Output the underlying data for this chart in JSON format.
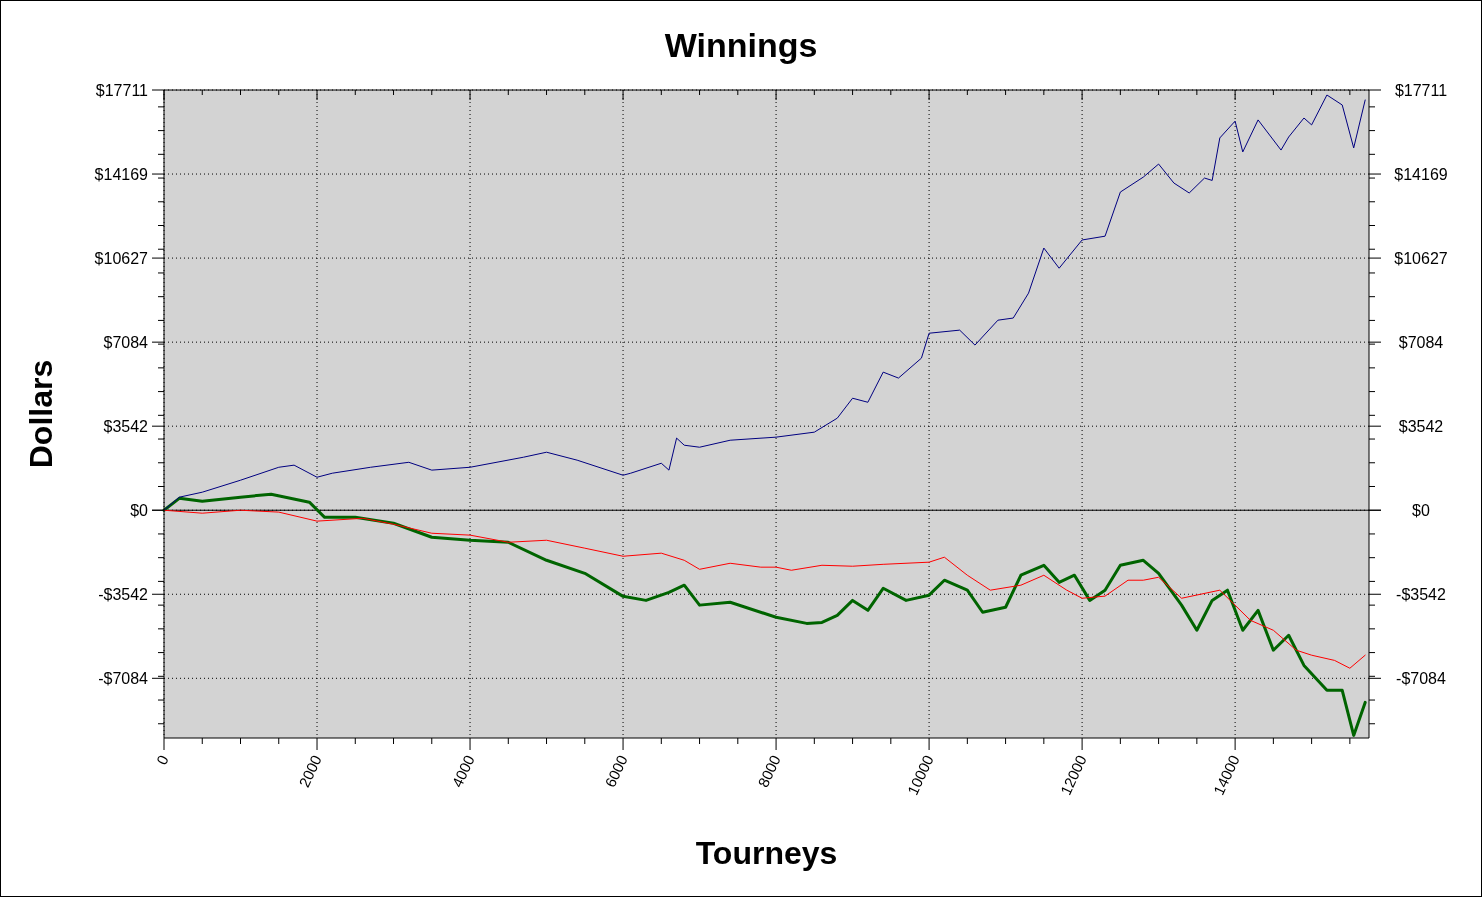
{
  "chart_data": {
    "type": "line",
    "title": "Winnings",
    "xlabel": "Tourneys",
    "ylabel": "Dollars",
    "xlim": [
      0,
      15750
    ],
    "xticks": [
      0,
      {
        "value": 500,
        "label": null
      },
      {
        "value": 1000,
        "label": null
      },
      {
        "value": 1500,
        "label": null
      },
      2000,
      {
        "value": 2500,
        "label": null
      },
      {
        "value": 3000,
        "label": null
      },
      {
        "value": 3500,
        "label": null
      },
      4000,
      {
        "value": 4500,
        "label": null
      },
      {
        "value": 5000,
        "label": null
      },
      {
        "value": 5500,
        "label": null
      },
      6000,
      {
        "value": 6500,
        "label": null
      },
      {
        "value": 7000,
        "label": null
      },
      {
        "value": 7500,
        "label": null
      },
      8000,
      {
        "value": 8500,
        "label": null
      },
      {
        "value": 9000,
        "label": null
      },
      {
        "value": 9500,
        "label": null
      },
      10000,
      {
        "value": 10500,
        "label": null
      },
      {
        "value": 11000,
        "label": null
      },
      {
        "value": 11500,
        "label": null
      },
      12000,
      {
        "value": 12500,
        "label": null
      },
      {
        "value": 13000,
        "label": null
      },
      {
        "value": 13500,
        "label": null
      },
      14000,
      {
        "value": 14500,
        "label": null
      },
      {
        "value": 15000,
        "label": null
      },
      {
        "value": 15500,
        "label": null
      }
    ],
    "ylim": [
      -9600,
      17711
    ],
    "yticks": [
      {
        "value": -7084,
        "label": "-$7084"
      },
      {
        "value": -3542,
        "label": "-$3542"
      },
      {
        "value": 0,
        "label": "$0"
      },
      {
        "value": 3542,
        "label": "$3542"
      },
      {
        "value": 7084,
        "label": "$7084"
      },
      {
        "value": 10627,
        "label": "$10627"
      },
      {
        "value": 14169,
        "label": "$14169"
      },
      {
        "value": 17711,
        "label": "$17711"
      },
      {
        "value": -9000,
        "label": null
      },
      {
        "value": -8000,
        "label": null
      },
      {
        "value": -7000,
        "label": null
      },
      {
        "value": -6000,
        "label": null
      },
      {
        "value": -5000,
        "label": null
      },
      {
        "value": -4000,
        "label": null
      },
      {
        "value": -3000,
        "label": null
      },
      {
        "value": -2000,
        "label": null
      },
      {
        "value": -1000,
        "label": null
      },
      {
        "value": 1000,
        "label": null
      },
      {
        "value": 2000,
        "label": null
      },
      {
        "value": 3000,
        "label": null
      },
      {
        "value": 4000,
        "label": null
      },
      {
        "value": 5000,
        "label": null
      },
      {
        "value": 6000,
        "label": null
      },
      {
        "value": 7000,
        "label": null
      },
      {
        "value": 8000,
        "label": null
      },
      {
        "value": 9000,
        "label": null
      },
      {
        "value": 10000,
        "label": null
      },
      {
        "value": 11000,
        "label": null
      },
      {
        "value": 12000,
        "label": null
      },
      {
        "value": 13000,
        "label": null
      },
      {
        "value": 14000,
        "label": null
      },
      {
        "value": 15000,
        "label": null
      },
      {
        "value": 16000,
        "label": null
      },
      {
        "value": 17000,
        "label": null
      }
    ],
    "y2lim": [
      -9600,
      17711
    ],
    "y2ticks": [
      {
        "value": -7084,
        "label": "-$7084"
      },
      {
        "value": -3542,
        "label": "-$3542"
      },
      {
        "value": 0,
        "label": "$0"
      },
      {
        "value": 3542,
        "label": "$3542"
      },
      {
        "value": 7084,
        "label": "$7084"
      },
      {
        "value": 10627,
        "label": "$10627"
      },
      {
        "value": 14169,
        "label": "$14169"
      },
      {
        "value": 17711,
        "label": "$17711"
      },
      {
        "value": -9000,
        "label": null
      },
      {
        "value": -8000,
        "label": null
      },
      {
        "value": -7000,
        "label": null
      },
      {
        "value": -6000,
        "label": null
      },
      {
        "value": -5000,
        "label": null
      },
      {
        "value": -4000,
        "label": null
      },
      {
        "value": -3000,
        "label": null
      },
      {
        "value": -2000,
        "label": null
      },
      {
        "value": -1000,
        "label": null
      },
      {
        "value": 1000,
        "label": null
      },
      {
        "value": 2000,
        "label": null
      },
      {
        "value": 3000,
        "label": null
      },
      {
        "value": 4000,
        "label": null
      },
      {
        "value": 5000,
        "label": null
      },
      {
        "value": 6000,
        "label": null
      },
      {
        "value": 7000,
        "label": null
      },
      {
        "value": 8000,
        "label": null
      },
      {
        "value": 9000,
        "label": null
      },
      {
        "value": 10000,
        "label": null
      },
      {
        "value": 11000,
        "label": null
      },
      {
        "value": 12000,
        "label": null
      },
      {
        "value": 13000,
        "label": null
      },
      {
        "value": 14000,
        "label": null
      },
      {
        "value": 15000,
        "label": null
      },
      {
        "value": 16000,
        "label": null
      },
      {
        "value": 17000,
        "label": null
      }
    ],
    "grid": true,
    "ref_lines": [
      {
        "axis": "y",
        "value": 0,
        "label": null,
        "color": "#000000"
      }
    ],
    "series": [
      {
        "color": "#000080",
        "x": [
          0,
          200,
          500,
          1000,
          1500,
          1700,
          2000,
          2200,
          2700,
          3200,
          3500,
          4000,
          4700,
          5000,
          5400,
          6000,
          6100,
          6500,
          6600,
          6700,
          6800,
          7000,
          7400,
          8000,
          8500,
          8800,
          9000,
          9200,
          9400,
          9600,
          9900,
          10000,
          10400,
          10600,
          10900,
          11100,
          11300,
          11500,
          11700,
          12000,
          12300,
          12500,
          12800,
          13000,
          13200,
          13400,
          13600,
          13700,
          13800,
          14000,
          14100,
          14300,
          14600,
          14700,
          14900,
          15000,
          15200,
          15400,
          15550,
          15700
        ],
        "values": [
          0,
          550,
          760,
          1265,
          1810,
          1900,
          1390,
          1560,
          1810,
          2020,
          1690,
          1810,
          2235,
          2445,
          2110,
          1475,
          1560,
          1980,
          1690,
          3040,
          2740,
          2655,
          2950,
          3080,
          3290,
          3880,
          4720,
          4550,
          5820,
          5570,
          6410,
          7460,
          7590,
          6960,
          8010,
          8100,
          9150,
          11050,
          10200,
          11390,
          11550,
          13410,
          14040,
          14590,
          13790,
          13370,
          14000,
          13900,
          15690,
          16400,
          15100,
          16450,
          15180,
          15730,
          16530,
          16240,
          17500,
          17080,
          15270,
          17290
        ]
      },
      {
        "color": "#ff0000",
        "x": [
          0,
          500,
          1000,
          1500,
          2000,
          2600,
          3000,
          3500,
          4000,
          4500,
          5000,
          5500,
          6000,
          6500,
          6800,
          7000,
          7400,
          7800,
          8000,
          8200,
          8600,
          9000,
          9400,
          10000,
          10200,
          10500,
          10800,
          11200,
          11500,
          11800,
          12000,
          12300,
          12600,
          12800,
          13000,
          13300,
          13800,
          14200,
          14500,
          14800,
          15000,
          15300,
          15500,
          15700
        ],
        "values": [
          0,
          -125,
          0,
          -80,
          -460,
          -340,
          -590,
          -970,
          -1050,
          -1350,
          -1265,
          -1600,
          -1940,
          -1810,
          -2110,
          -2490,
          -2235,
          -2400,
          -2400,
          -2530,
          -2320,
          -2360,
          -2280,
          -2190,
          -1980,
          -2740,
          -3370,
          -3160,
          -2740,
          -3370,
          -3710,
          -3620,
          -2950,
          -2950,
          -2825,
          -3710,
          -3370,
          -4640,
          -5060,
          -5900,
          -6110,
          -6330,
          -6660,
          -6110
        ]
      },
      {
        "color": "#006400",
        "x": [
          0,
          200,
          500,
          1000,
          1400,
          1900,
          2100,
          2500,
          3000,
          3500,
          4000,
          4500,
          5000,
          5500,
          6000,
          6300,
          6600,
          6800,
          7000,
          7400,
          8000,
          8400,
          8600,
          8800,
          9000,
          9200,
          9400,
          9700,
          10000,
          10200,
          10500,
          10700,
          11000,
          11200,
          11500,
          11700,
          11900,
          12100,
          12300,
          12500,
          12800,
          13000,
          13300,
          13500,
          13700,
          13900,
          14100,
          14300,
          14500,
          14700,
          14900,
          15200,
          15400,
          15550,
          15700
        ],
        "values": [
          0,
          500,
          380,
          550,
          675,
          340,
          -300,
          -300,
          -550,
          -1140,
          -1265,
          -1350,
          -2110,
          -2660,
          -3630,
          -3800,
          -3460,
          -3160,
          -4000,
          -3880,
          -4510,
          -4770,
          -4730,
          -4430,
          -3800,
          -4220,
          -3290,
          -3800,
          -3580,
          -2950,
          -3370,
          -4300,
          -4090,
          -2740,
          -2320,
          -3040,
          -2740,
          -3800,
          -3370,
          -2320,
          -2110,
          -2660,
          -4000,
          -5060,
          -3800,
          -3370,
          -5060,
          -4220,
          -5900,
          -5270,
          -6540,
          -7590,
          -7590,
          -9490,
          -8100
        ]
      }
    ]
  }
}
